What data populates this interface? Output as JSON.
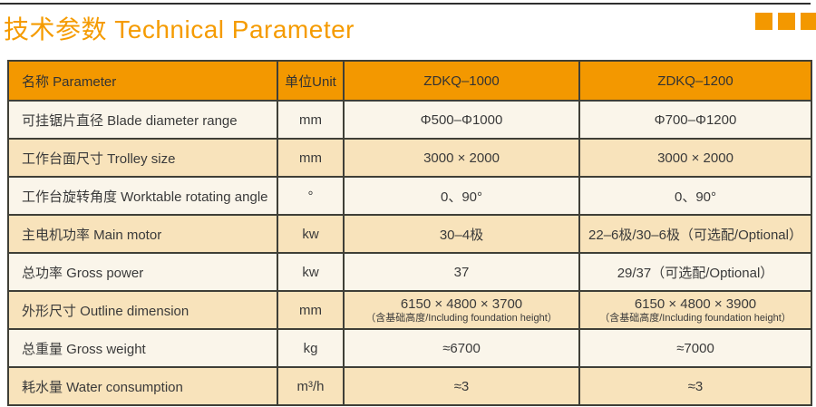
{
  "page": {
    "title": "技术参数 Technical Parameter",
    "accent_color": "#f39800",
    "header_bg": "#f39800",
    "row_bg_light": "#faf5ea",
    "row_bg_tan": "#f8e3bb",
    "border_color": "#3f3f37"
  },
  "table": {
    "headers": {
      "name": "名称 Parameter",
      "unit": "单位Unit",
      "model1": "ZDKQ–1000",
      "model2": "ZDKQ–1200"
    },
    "rows": [
      {
        "name": "可挂锯片直径 Blade diameter range",
        "unit": "mm",
        "v1": "Φ500–Φ1000",
        "v2": "Φ700–Φ1200"
      },
      {
        "name": "工作台面尺寸 Trolley size",
        "unit": "mm",
        "v1": "3000 × 2000",
        "v2": "3000 × 2000"
      },
      {
        "name": "工作台旋转角度 Worktable rotating angle",
        "unit": "°",
        "v1": "0、90°",
        "v2": "0、90°"
      },
      {
        "name": "主电机功率 Main motor",
        "unit": "kw",
        "v1": "30–4极",
        "v2": "22–6极/30–6极（可选配/Optional）"
      },
      {
        "name": "总功率 Gross power",
        "unit": "kw",
        "v1": "37",
        "v2": "29/37（可选配/Optional）"
      },
      {
        "name": "外形尺寸 Outline dimension",
        "unit": "mm",
        "v1": "6150 × 4800 × 3700",
        "v1_note": "（含基础高度/Including foundation height）",
        "v2": "6150 × 4800 × 3900",
        "v2_note": "（含基础高度/Including foundation height）"
      },
      {
        "name": "总重量 Gross weight",
        "unit": "kg",
        "v1": "≈6700",
        "v2": "≈7000"
      },
      {
        "name": "耗水量 Water consumption",
        "unit": "m³/h",
        "v1": "≈3",
        "v2": "≈3"
      }
    ]
  }
}
